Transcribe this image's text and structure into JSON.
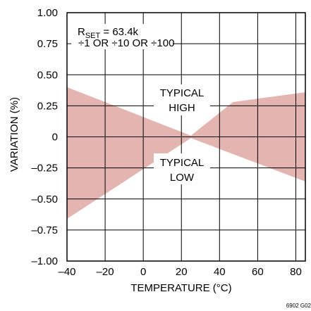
{
  "chart_data": {
    "type": "area",
    "xlabel": "TEMPERATURE (°C)",
    "ylabel": "VARIATION (%)",
    "xlim": [
      -40,
      85
    ],
    "ylim": [
      -1.0,
      1.0
    ],
    "x_ticks": [
      "–40",
      "–20",
      "0",
      "20",
      "40",
      "60",
      "80"
    ],
    "x_tick_values": [
      -40,
      -20,
      0,
      20,
      40,
      60,
      80
    ],
    "y_ticks": [
      "1.00",
      "0.75",
      "0.50",
      "0.25",
      "0",
      "–0.25",
      "–0.50",
      "–0.75",
      "–1.00"
    ],
    "y_tick_values": [
      1.0,
      0.75,
      0.5,
      0.25,
      0,
      -0.25,
      -0.5,
      -0.75,
      -1.0
    ],
    "grid": true,
    "fill_color": "#e3b4b0",
    "series": [
      {
        "name": "TYPICAL HIGH",
        "x": [
          -40,
          25,
          47,
          85
        ],
        "values": [
          0.4,
          0.01,
          0.28,
          0.36
        ]
      },
      {
        "name": "TYPICAL LOW",
        "x": [
          -40,
          25,
          85
        ],
        "values": [
          -0.66,
          -0.01,
          -0.36
        ]
      }
    ],
    "annotations": {
      "rset_prefix": "R",
      "rset_sub": "SET",
      "rset_value": " = 63.4k",
      "divider": "÷1 OR ÷10 OR ÷100",
      "high_line1": "TYPICAL",
      "high_line2": "HIGH",
      "low_line1": "TYPICAL",
      "low_line2": "LOW"
    },
    "figure_code": "6902 G02"
  }
}
